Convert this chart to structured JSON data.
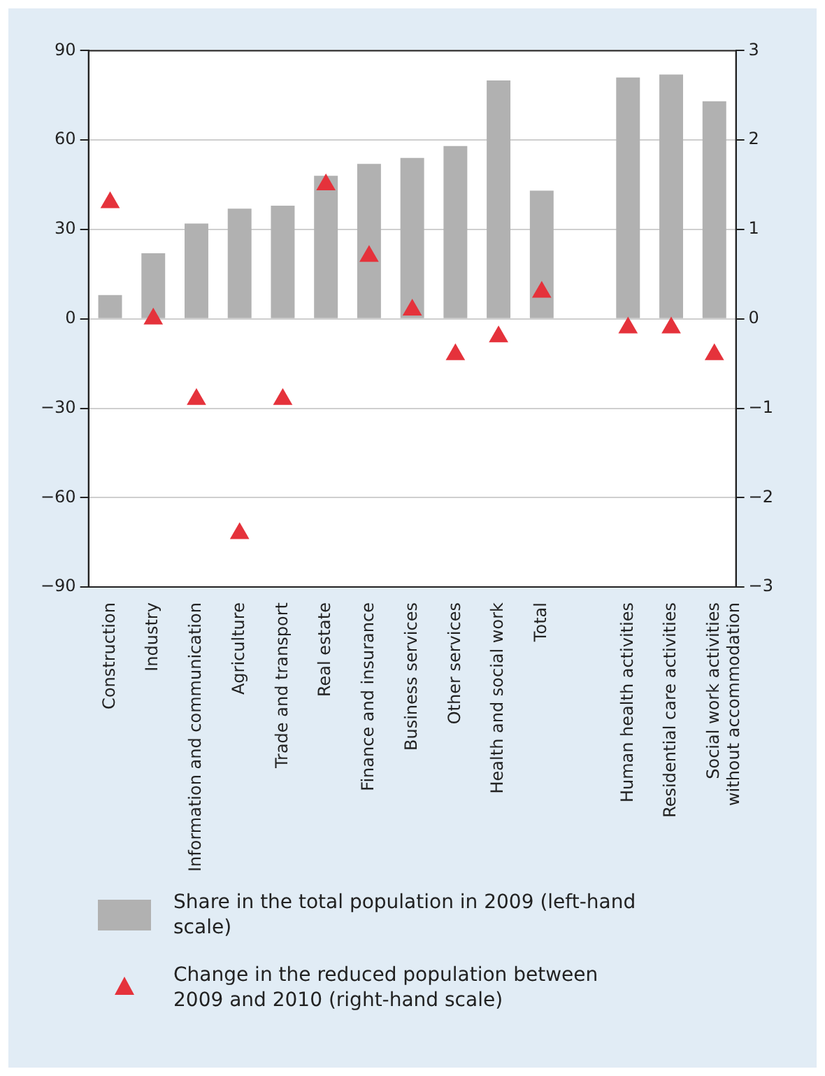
{
  "chart_data": {
    "type": "bar",
    "categories": [
      "Construction",
      "Industry",
      "Information and communication",
      "Agriculture",
      "Trade and transport",
      "Real estate",
      "Finance and insurance",
      "Business services",
      "Other services",
      "Health and social work",
      "Total",
      null,
      "Human health activities",
      "Residential care activities",
      "Social work activities without accommodation"
    ],
    "series": [
      {
        "name": "Share in the total population in 2009 (left-hand scale)",
        "color": "#b1b1b1",
        "values": [
          8,
          22,
          32,
          37,
          38,
          48,
          52,
          54,
          58,
          80,
          43,
          null,
          81,
          82,
          73
        ]
      },
      {
        "name": "Change in the reduced population between 2009 and 2010 (right-hand scale)",
        "type": "scatter",
        "axis": "y2",
        "color": "#e5323b",
        "values": [
          1.3,
          0,
          -0.9,
          -2.4,
          -0.9,
          1.5,
          0.7,
          0.1,
          -0.4,
          -0.2,
          0.3,
          null,
          -0.1,
          -0.1,
          -0.4
        ]
      }
    ],
    "ylim": [
      -90,
      90
    ],
    "yticks": [
      {
        "value": -90,
        "label": "−90"
      },
      {
        "value": -60,
        "label": "−60"
      },
      {
        "value": -30,
        "label": "−30"
      },
      0,
      30,
      60,
      90
    ],
    "y2lim": [
      -3,
      3
    ],
    "y2ticks": [
      {
        "value": -3,
        "label": "−3"
      },
      {
        "value": -2,
        "label": "−2"
      },
      {
        "value": -1,
        "label": "−1"
      },
      0,
      1,
      2,
      3
    ],
    "grid": "y",
    "marker": "triangle",
    "legend": "bottom"
  }
}
